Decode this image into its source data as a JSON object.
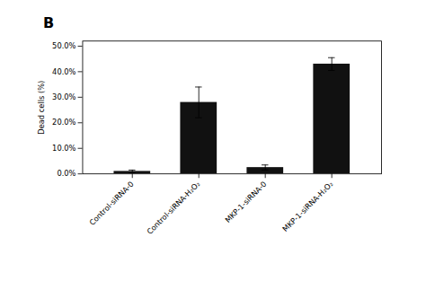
{
  "chart_data": {
    "type": "bar",
    "title": "B",
    "categories": [
      "Control-siRNA-0",
      "Control-siRNA-H₂O₂",
      "MKP-1-siRNA-0",
      "MKP-1-siRNA-H₂O₂"
    ],
    "values": [
      1.0,
      28.0,
      2.5,
      43.0
    ],
    "errors": [
      0.5,
      6.0,
      1.0,
      2.5
    ],
    "color": "#111111",
    "ylabel": "Dead cells (%)",
    "ylim": [
      0,
      52
    ],
    "yticks": [
      {
        "value": 0.0,
        "label": "0.0%"
      },
      {
        "value": 10.0,
        "label": "10.0%"
      },
      {
        "value": 20.0,
        "label": "20.0%"
      },
      {
        "value": 30.0,
        "label": "30.0%"
      },
      {
        "value": 40.0,
        "label": "40.0%"
      },
      {
        "value": 50.0,
        "label": "50.0%"
      }
    ]
  }
}
